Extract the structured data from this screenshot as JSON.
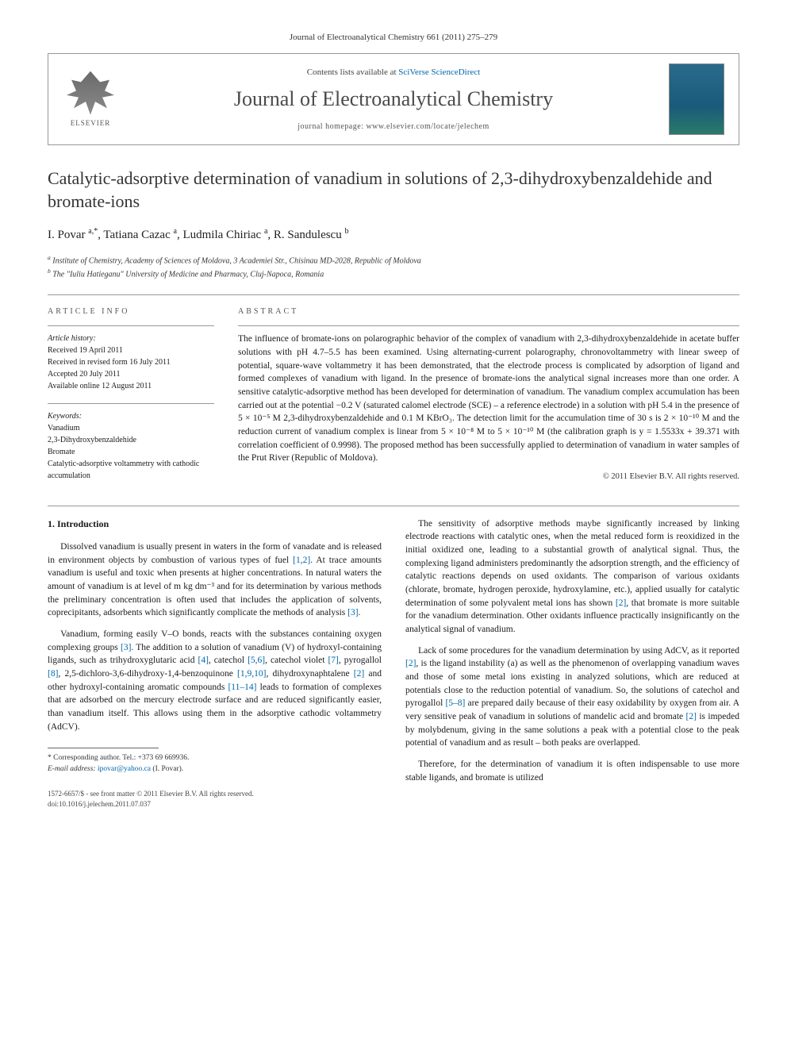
{
  "header": {
    "citation": "Journal of Electroanalytical Chemistry 661 (2011) 275–279",
    "contents_prefix": "Contents lists available at ",
    "contents_link": "SciVerse ScienceDirect",
    "journal_name": "Journal of Electroanalytical Chemistry",
    "homepage_prefix": "journal homepage: ",
    "homepage_url": "www.elsevier.com/locate/jelechem",
    "publisher": "ELSEVIER"
  },
  "article": {
    "title": "Catalytic-adsorptive determination of vanadium in solutions of 2,3-dihydroxybenzaldehide and bromate-ions",
    "authors_html": "I. Povar <sup>a,*</sup>, Tatiana Cazac <sup>a</sup>, Ludmila Chiriac <sup>a</sup>, R. Sandulescu <sup>b</sup>",
    "affiliations": [
      "a Institute of Chemistry, Academy of Sciences of Moldova, 3 Academiei Str., Chisinau MD-2028, Republic of Moldova",
      "b The \"Iuliu Hatieganu\" University of Medicine and Pharmacy, Cluj-Napoca, Romania"
    ]
  },
  "info": {
    "heading": "ARTICLE INFO",
    "history_label": "Article history:",
    "history": [
      "Received 19 April 2011",
      "Received in revised form 16 July 2011",
      "Accepted 20 July 2011",
      "Available online 12 August 2011"
    ],
    "keywords_label": "Keywords:",
    "keywords": [
      "Vanadium",
      "2,3-Dihydroxybenzaldehide",
      "Bromate",
      "Catalytic-adsorptive voltammetry with cathodic accumulation"
    ]
  },
  "abstract": {
    "heading": "ABSTRACT",
    "text": "The influence of bromate-ions on polarographic behavior of the complex of vanadium with 2,3-dihydroxybenzaldehide in acetate buffer solutions with pH 4.7–5.5 has been examined. Using alternating-current polarography, chronovoltammetry with linear sweep of potential, square-wave voltammetry it has been demonstrated, that the electrode process is complicated by adsorption of ligand and formed complexes of vanadium with ligand. In the presence of bromate-ions the analytical signal increases more than one order. A sensitive catalytic-adsorptive method has been developed for determination of vanadium. The vanadium complex accumulation has been carried out at the potential −0.2 V (saturated calomel electrode (SCE) – a reference electrode) in a solution with pH 5.4 in the presence of 5 × 10⁻⁵ M 2,3-dihydroxybenzaldehide and 0.1 M KBrO₃. The detection limit for the accumulation time of 30 s is 2 × 10⁻¹⁰ M and the reduction current of vanadium complex is linear from 5 × 10⁻⁸ M to 5 × 10⁻¹⁰ M (the calibration graph is y = 1.5533x + 39.371 with correlation coefficient of 0.9998). The proposed method has been successfully applied to determination of vanadium in water samples of the Prut River (Republic of Moldova).",
    "copyright": "© 2011 Elsevier B.V. All rights reserved."
  },
  "body": {
    "section_heading": "1. Introduction",
    "left_paragraphs": [
      "Dissolved vanadium is usually present in waters in the form of vanadate and is released in environment objects by combustion of various types of fuel [1,2]. At trace amounts vanadium is useful and toxic when presents at higher concentrations. In natural waters the amount of vanadium is at level of m kg dm⁻³ and for its determination by various methods the preliminary concentration is often used that includes the application of solvents, coprecipitants, adsorbents which significantly complicate the methods of analysis [3].",
      "Vanadium, forming easily V–O bonds, reacts with the substances containing oxygen complexing groups [3]. The addition to a solution of vanadium (V) of hydroxyl-containing ligands, such as trihydroxyglutaric acid [4], catechol [5,6], catechol violet [7], pyrogallol [8], 2,5-dichloro-3,6-dihydroxy-1,4-benzoquinone [1,9,10], dihydroxynaphtalene [2] and other hydroxyl-containing aromatic compounds [11–14] leads to formation of complexes that are adsorbed on the mercury electrode surface and are reduced significantly easier, than vanadium itself. This allows using them in the adsorptive cathodic voltammetry (AdCV)."
    ],
    "right_paragraphs": [
      "The sensitivity of adsorptive methods maybe significantly increased by linking electrode reactions with catalytic ones, when the metal reduced form is reoxidized in the initial oxidized one, leading to a substantial growth of analytical signal. Thus, the complexing ligand administers predominantly the adsorption strength, and the efficiency of catalytic reactions depends on used oxidants. The comparison of various oxidants (chlorate, bromate, hydrogen peroxide, hydroxylamine, etc.), applied usually for catalytic determination of some polyvalent metal ions has shown [2], that bromate is more suitable for the vanadium determination. Other oxidants influence practically insignificantly on the analytical signal of vanadium.",
      "Lack of some procedures for the vanadium determination by using AdCV, as it reported [2], is the ligand instability (a) as well as the phenomenon of overlapping vanadium waves and those of some metal ions existing in analyzed solutions, which are reduced at potentials close to the reduction potential of vanadium. So, the solutions of catechol and pyrogallol [5–8] are prepared daily because of their easy oxidability by oxygen from air. A very sensitive peak of vanadium in solutions of mandelic acid and bromate [2] is impeded by molybdenum, giving in the same solutions a peak with a potential close to the peak potential of vanadium and as result – both peaks are overlapped.",
      "Therefore, for the determination of vanadium it is often indispensable to use more stable ligands, and bromate is utilized"
    ]
  },
  "footnote": {
    "corresponding": "* Corresponding author. Tel.: +373 69 669936.",
    "email_label": "E-mail address:",
    "email": "ipovar@yahoo.ca",
    "email_name": "(I. Povar)."
  },
  "footer": {
    "line1": "1572-6657/$ - see front matter © 2011 Elsevier B.V. All rights reserved.",
    "doi": "doi:10.1016/j.jelechem.2011.07.037"
  },
  "colors": {
    "link": "#0066aa",
    "text": "#1a1a1a",
    "muted": "#555555",
    "border": "#999999"
  }
}
